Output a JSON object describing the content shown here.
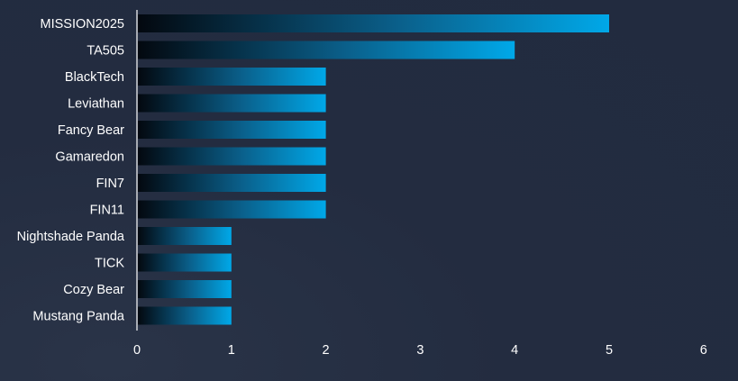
{
  "chart_data": {
    "type": "bar",
    "orientation": "horizontal",
    "categories": [
      "MISSION2025",
      "TA505",
      "BlackTech",
      "Leviathan",
      "Fancy Bear",
      "Gamaredon",
      "FIN7",
      "FIN11",
      "Nightshade Panda",
      "TICK",
      "Cozy Bear",
      "Mustang Panda"
    ],
    "values": [
      5,
      4,
      2,
      2,
      2,
      2,
      2,
      2,
      1,
      1,
      1,
      1
    ],
    "title": "",
    "xlabel": "",
    "ylabel": "",
    "xlim": [
      0,
      6
    ],
    "x_ticks": [
      "0",
      "1",
      "2",
      "3",
      "4",
      "5",
      "6"
    ],
    "grid": false,
    "legend": "none"
  },
  "colors": {
    "background": "#222b3f",
    "bar_start": "#03080f",
    "bar_end": "#00a8e8",
    "axis_line": "#ffffff",
    "text": "#ffffff"
  }
}
